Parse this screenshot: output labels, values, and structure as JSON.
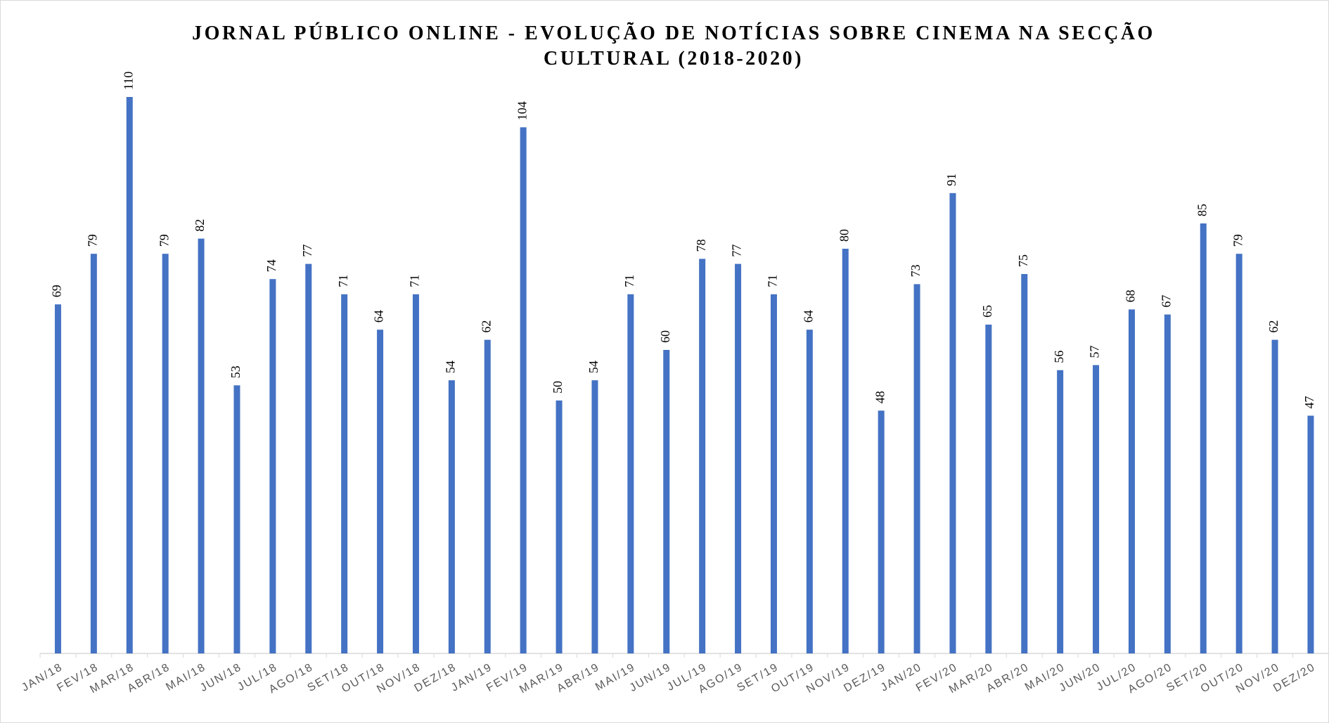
{
  "chart_data": {
    "type": "bar",
    "title": "JORNAL PÚBLICO ONLINE - EVOLUÇÃO DE NOTÍCIAS SOBRE CINEMA NA SECÇÃO CULTURAL (2018-2020)",
    "categories": [
      "JAN/18",
      "FEV/18",
      "MAR/18",
      "ABR/18",
      "MAI/18",
      "JUN/18",
      "JUL/18",
      "AGO/18",
      "SET/18",
      "OUT/18",
      "NOV/18",
      "DEZ/18",
      "JAN/19",
      "FEV/19",
      "MAR/19",
      "ABR/19",
      "MAI/19",
      "JUN/19",
      "JUL/19",
      "AGO/19",
      "SET/19",
      "OUT/19",
      "NOV/19",
      "DEZ/19",
      "JAN/20",
      "FEV/20",
      "MAR/20",
      "ABR/20",
      "MAI/20",
      "JUN/20",
      "JUL/20",
      "AGO/20",
      "SET/20",
      "OUT/20",
      "NOV/20",
      "DEZ/20"
    ],
    "values": [
      69,
      79,
      110,
      79,
      82,
      53,
      74,
      77,
      71,
      64,
      71,
      54,
      62,
      104,
      50,
      54,
      71,
      60,
      78,
      77,
      71,
      64,
      80,
      48,
      73,
      91,
      65,
      75,
      56,
      57,
      68,
      67,
      85,
      79,
      62,
      47
    ],
    "color": "#4472c4",
    "ylim": [
      0,
      120
    ]
  }
}
